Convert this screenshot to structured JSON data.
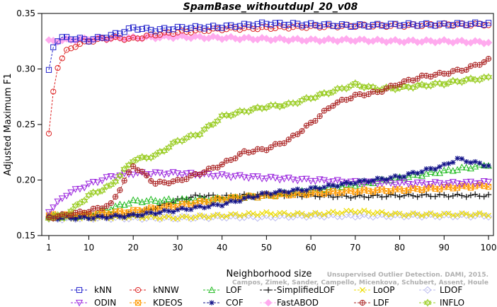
{
  "chart_data": {
    "type": "line",
    "title": "SpamBase_withoutdupl_20_v08",
    "xlabel": "Neighborhood size",
    "ylabel": "Adjusted Maximum F1",
    "xlim": [
      1,
      100
    ],
    "ylim": [
      0.15,
      0.35
    ],
    "xticks": [
      1,
      10,
      20,
      30,
      40,
      50,
      60,
      70,
      80,
      90,
      100
    ],
    "yticks": [
      0.15,
      0.2,
      0.25,
      0.3,
      0.35
    ],
    "ytick_labels": [
      "0.15",
      "0.20",
      "0.25",
      "0.30",
      "0.35"
    ],
    "grid": false,
    "legend_position": "bottom",
    "series": [
      {
        "name": "kNN",
        "color": "#2222cc",
        "marker": "square",
        "points": [
          [
            1,
            0.298
          ],
          [
            2,
            0.32
          ],
          [
            3,
            0.326
          ],
          [
            4,
            0.328
          ],
          [
            5,
            0.328
          ],
          [
            8,
            0.327
          ],
          [
            10,
            0.326
          ],
          [
            15,
            0.33
          ],
          [
            18,
            0.334
          ],
          [
            20,
            0.337
          ],
          [
            25,
            0.335
          ],
          [
            30,
            0.337
          ],
          [
            40,
            0.338
          ],
          [
            50,
            0.341
          ],
          [
            60,
            0.34
          ],
          [
            70,
            0.339
          ],
          [
            80,
            0.34
          ],
          [
            90,
            0.34
          ],
          [
            100,
            0.341
          ]
        ]
      },
      {
        "name": "kNNW",
        "color": "#dd2222",
        "marker": "circle",
        "points": [
          [
            1,
            0.241
          ],
          [
            2,
            0.279
          ],
          [
            3,
            0.302
          ],
          [
            4,
            0.31
          ],
          [
            5,
            0.316
          ],
          [
            7,
            0.321
          ],
          [
            10,
            0.325
          ],
          [
            15,
            0.328
          ],
          [
            20,
            0.327
          ],
          [
            25,
            0.331
          ],
          [
            30,
            0.333
          ],
          [
            40,
            0.336
          ],
          [
            50,
            0.337
          ],
          [
            60,
            0.338
          ],
          [
            70,
            0.339
          ],
          [
            80,
            0.339
          ],
          [
            90,
            0.34
          ],
          [
            100,
            0.34
          ]
        ]
      },
      {
        "name": "LOF",
        "color": "#22bb22",
        "marker": "triangle-up",
        "points": [
          [
            1,
            0.167
          ],
          [
            10,
            0.168
          ],
          [
            20,
            0.181
          ],
          [
            30,
            0.182
          ],
          [
            40,
            0.183
          ],
          [
            50,
            0.186
          ],
          [
            60,
            0.191
          ],
          [
            70,
            0.196
          ],
          [
            80,
            0.202
          ],
          [
            90,
            0.208
          ],
          [
            100,
            0.214
          ]
        ]
      },
      {
        "name": "SimplifiedLOF",
        "color": "#111111",
        "marker": "plus",
        "points": [
          [
            1,
            0.166
          ],
          [
            10,
            0.167
          ],
          [
            20,
            0.169
          ],
          [
            25,
            0.175
          ],
          [
            30,
            0.182
          ],
          [
            35,
            0.186
          ],
          [
            40,
            0.185
          ],
          [
            50,
            0.187
          ],
          [
            60,
            0.186
          ],
          [
            70,
            0.185
          ],
          [
            80,
            0.186
          ],
          [
            90,
            0.186
          ],
          [
            100,
            0.186
          ]
        ]
      },
      {
        "name": "LoOP",
        "color": "#eedd00",
        "marker": "x",
        "points": [
          [
            1,
            0.166
          ],
          [
            10,
            0.166
          ],
          [
            20,
            0.167
          ],
          [
            30,
            0.166
          ],
          [
            40,
            0.168
          ],
          [
            50,
            0.17
          ],
          [
            60,
            0.169
          ],
          [
            70,
            0.172
          ],
          [
            80,
            0.169
          ],
          [
            90,
            0.169
          ],
          [
            100,
            0.169
          ]
        ]
      },
      {
        "name": "LDOF",
        "color": "#bbbbee",
        "marker": "diamond",
        "points": [
          [
            1,
            0.165
          ],
          [
            10,
            0.166
          ],
          [
            20,
            0.166
          ],
          [
            30,
            0.166
          ],
          [
            40,
            0.167
          ],
          [
            50,
            0.167
          ],
          [
            60,
            0.168
          ],
          [
            70,
            0.168
          ],
          [
            80,
            0.168
          ],
          [
            90,
            0.168
          ],
          [
            100,
            0.168
          ]
        ]
      },
      {
        "name": "ODIN",
        "color": "#9922dd",
        "marker": "triangle-down",
        "points": [
          [
            1,
            0.172
          ],
          [
            5,
            0.187
          ],
          [
            10,
            0.196
          ],
          [
            15,
            0.203
          ],
          [
            20,
            0.206
          ],
          [
            25,
            0.206
          ],
          [
            30,
            0.206
          ],
          [
            35,
            0.205
          ],
          [
            40,
            0.204
          ],
          [
            50,
            0.202
          ],
          [
            60,
            0.2
          ],
          [
            70,
            0.198
          ],
          [
            80,
            0.197
          ],
          [
            90,
            0.197
          ],
          [
            100,
            0.198
          ]
        ]
      },
      {
        "name": "KDEOS",
        "color": "#ff9900",
        "marker": "square-x",
        "points": [
          [
            1,
            0.168
          ],
          [
            10,
            0.169
          ],
          [
            20,
            0.172
          ],
          [
            30,
            0.177
          ],
          [
            40,
            0.183
          ],
          [
            50,
            0.186
          ],
          [
            60,
            0.188
          ],
          [
            70,
            0.19
          ],
          [
            80,
            0.191
          ],
          [
            90,
            0.193
          ],
          [
            100,
            0.195
          ]
        ]
      },
      {
        "name": "COF",
        "color": "#111188",
        "marker": "asterisk",
        "points": [
          [
            1,
            0.166
          ],
          [
            10,
            0.166
          ],
          [
            20,
            0.168
          ],
          [
            30,
            0.173
          ],
          [
            40,
            0.178
          ],
          [
            50,
            0.188
          ],
          [
            60,
            0.192
          ],
          [
            70,
            0.198
          ],
          [
            80,
            0.203
          ],
          [
            90,
            0.213
          ],
          [
            93,
            0.219
          ],
          [
            100,
            0.213
          ]
        ]
      },
      {
        "name": "FastABOD",
        "color": "#ffaaee",
        "marker": "diamond-filled",
        "points": [
          [
            1,
            0.325
          ],
          [
            5,
            0.326
          ],
          [
            10,
            0.327
          ],
          [
            20,
            0.328
          ],
          [
            30,
            0.329
          ],
          [
            40,
            0.328
          ],
          [
            50,
            0.327
          ],
          [
            60,
            0.326
          ],
          [
            70,
            0.326
          ],
          [
            80,
            0.325
          ],
          [
            90,
            0.325
          ],
          [
            100,
            0.324
          ]
        ]
      },
      {
        "name": "LDF",
        "color": "#aa2222",
        "marker": "circle-plus",
        "points": [
          [
            1,
            0.166
          ],
          [
            10,
            0.172
          ],
          [
            15,
            0.178
          ],
          [
            20,
            0.213
          ],
          [
            25,
            0.197
          ],
          [
            30,
            0.199
          ],
          [
            35,
            0.206
          ],
          [
            40,
            0.214
          ],
          [
            45,
            0.225
          ],
          [
            50,
            0.228
          ],
          [
            55,
            0.236
          ],
          [
            60,
            0.251
          ],
          [
            65,
            0.268
          ],
          [
            70,
            0.276
          ],
          [
            75,
            0.279
          ],
          [
            80,
            0.287
          ],
          [
            85,
            0.293
          ],
          [
            90,
            0.296
          ],
          [
            95,
            0.3
          ],
          [
            100,
            0.308
          ]
        ]
      },
      {
        "name": "INFLO",
        "color": "#99cc22",
        "marker": "star",
        "points": [
          [
            1,
            0.166
          ],
          [
            5,
            0.169
          ],
          [
            10,
            0.186
          ],
          [
            15,
            0.195
          ],
          [
            20,
            0.218
          ],
          [
            25,
            0.222
          ],
          [
            30,
            0.235
          ],
          [
            35,
            0.242
          ],
          [
            40,
            0.257
          ],
          [
            45,
            0.262
          ],
          [
            50,
            0.266
          ],
          [
            55,
            0.268
          ],
          [
            60,
            0.274
          ],
          [
            65,
            0.28
          ],
          [
            70,
            0.286
          ],
          [
            75,
            0.282
          ],
          [
            80,
            0.283
          ],
          [
            85,
            0.285
          ],
          [
            90,
            0.287
          ],
          [
            95,
            0.29
          ],
          [
            100,
            0.292
          ]
        ]
      }
    ]
  },
  "watermark": {
    "line1": "Unsupervised Outlier Detection. DAMI, 2015.",
    "line2": "Campos, Zimek, Sander, Campello, Micenkova, Schubert, Assent, Houle"
  }
}
